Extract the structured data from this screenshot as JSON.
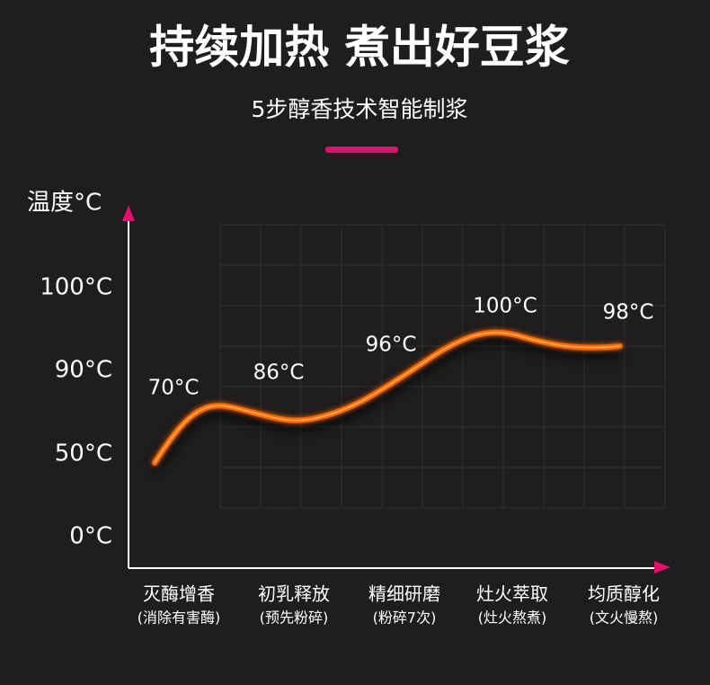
{
  "header": {
    "title": "持续加热 煮出好豆浆",
    "subtitle": "5步醇香技术智能制浆"
  },
  "axis": {
    "y_label": "温度°C",
    "y_ticks": [
      "100°C",
      "90°C",
      "50°C",
      "0°C"
    ]
  },
  "stages": [
    {
      "name": "灭酶增香",
      "detail": "(消除有害酶)",
      "temp": "70°C"
    },
    {
      "name": "初乳释放",
      "detail": "(预先粉碎)",
      "temp": "86°C"
    },
    {
      "name": "精细研磨",
      "detail": "(粉碎7次)",
      "temp": "96°C"
    },
    {
      "name": "灶火萃取",
      "detail": "(灶火熬煮)",
      "temp": "100°C"
    },
    {
      "name": "均质醇化",
      "detail": "(文火慢熬)",
      "temp": "98°C"
    }
  ]
}
